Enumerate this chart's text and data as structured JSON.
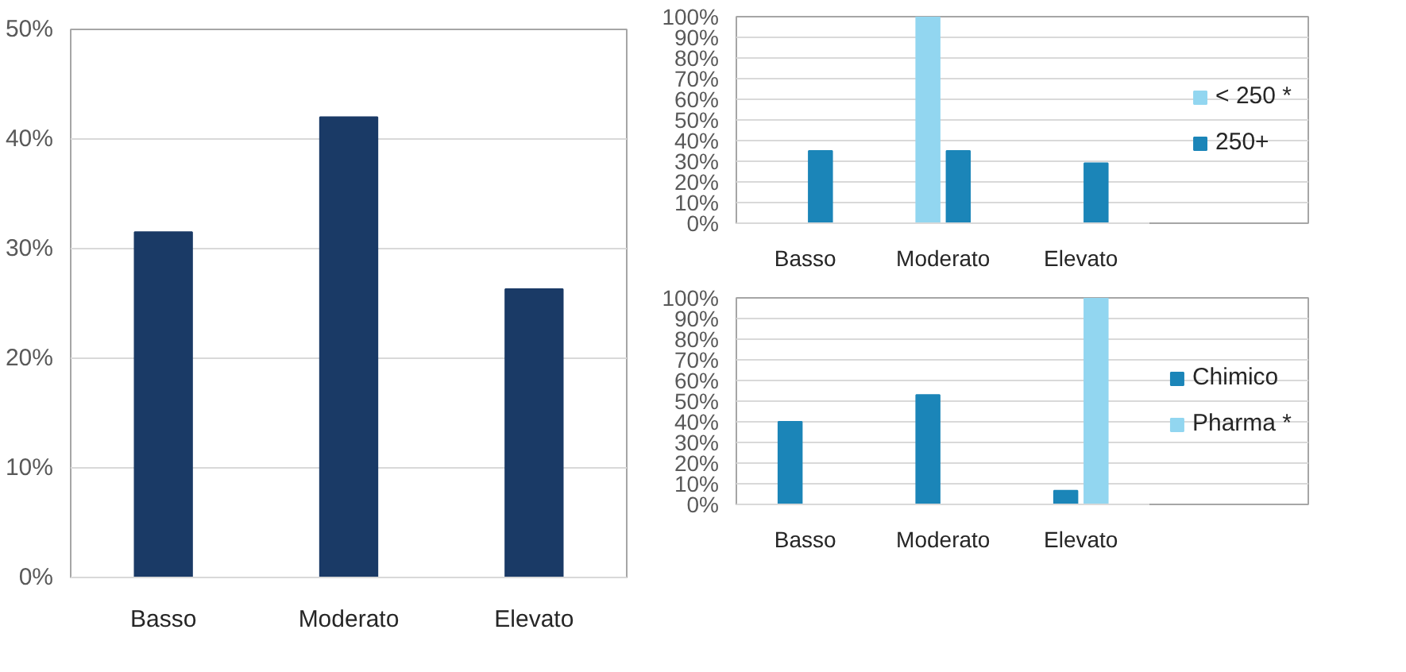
{
  "chart_data": [
    {
      "type": "bar",
      "categories": [
        "Basso",
        "Moderato",
        "Elevato"
      ],
      "values": [
        31.5,
        42,
        26.3
      ],
      "color": "#1a3a66",
      "ylim": [
        0,
        50
      ],
      "yticks": [
        {
          "value": 0,
          "label": "0%"
        },
        {
          "value": 10,
          "label": "10%"
        },
        {
          "value": 20,
          "label": "20%"
        },
        {
          "value": 30,
          "label": "30%"
        },
        {
          "value": 40,
          "label": "40%"
        },
        {
          "value": 50,
          "label": "50%"
        }
      ],
      "grid": "y",
      "legend": false
    },
    {
      "type": "bar",
      "categories": [
        "Basso",
        "Moderato",
        "Elevato"
      ],
      "series": [
        {
          "name": "< 250 *",
          "color": "#92d6f0",
          "values": [
            null,
            100,
            null
          ]
        },
        {
          "name": "250+",
          "color": "#1b85b8",
          "values": [
            35,
            35,
            29
          ]
        }
      ],
      "ylim": [
        0,
        100
      ],
      "yticks": [
        {
          "value": 0,
          "label": "0%"
        },
        {
          "value": 10,
          "label": "10%"
        },
        {
          "value": 20,
          "label": "20%"
        },
        {
          "value": 30,
          "label": "30%"
        },
        {
          "value": 40,
          "label": "40%"
        },
        {
          "value": 50,
          "label": "50%"
        },
        {
          "value": 60,
          "label": "60%"
        },
        {
          "value": 70,
          "label": "70%"
        },
        {
          "value": 80,
          "label": "80%"
        },
        {
          "value": 90,
          "label": "90%"
        },
        {
          "value": 100,
          "label": "100%"
        }
      ],
      "grid": "y",
      "legend": "right"
    },
    {
      "type": "bar",
      "categories": [
        "Basso",
        "Moderato",
        "Elevato"
      ],
      "series": [
        {
          "name": "Chimico",
          "color": "#1b85b8",
          "values": [
            40,
            53,
            6.6
          ]
        },
        {
          "name": "Pharma *",
          "color": "#92d6f0",
          "values": [
            null,
            null,
            100
          ]
        }
      ],
      "ylim": [
        0,
        100
      ],
      "yticks": [
        {
          "value": 0,
          "label": "0%"
        },
        {
          "value": 10,
          "label": "10%"
        },
        {
          "value": 20,
          "label": "20%"
        },
        {
          "value": 30,
          "label": "30%"
        },
        {
          "value": 40,
          "label": "40%"
        },
        {
          "value": 50,
          "label": "50%"
        },
        {
          "value": 60,
          "label": "60%"
        },
        {
          "value": 70,
          "label": "70%"
        },
        {
          "value": 80,
          "label": "80%"
        },
        {
          "value": 90,
          "label": "90%"
        },
        {
          "value": 100,
          "label": "100%"
        }
      ],
      "grid": "y",
      "legend": "right"
    }
  ]
}
